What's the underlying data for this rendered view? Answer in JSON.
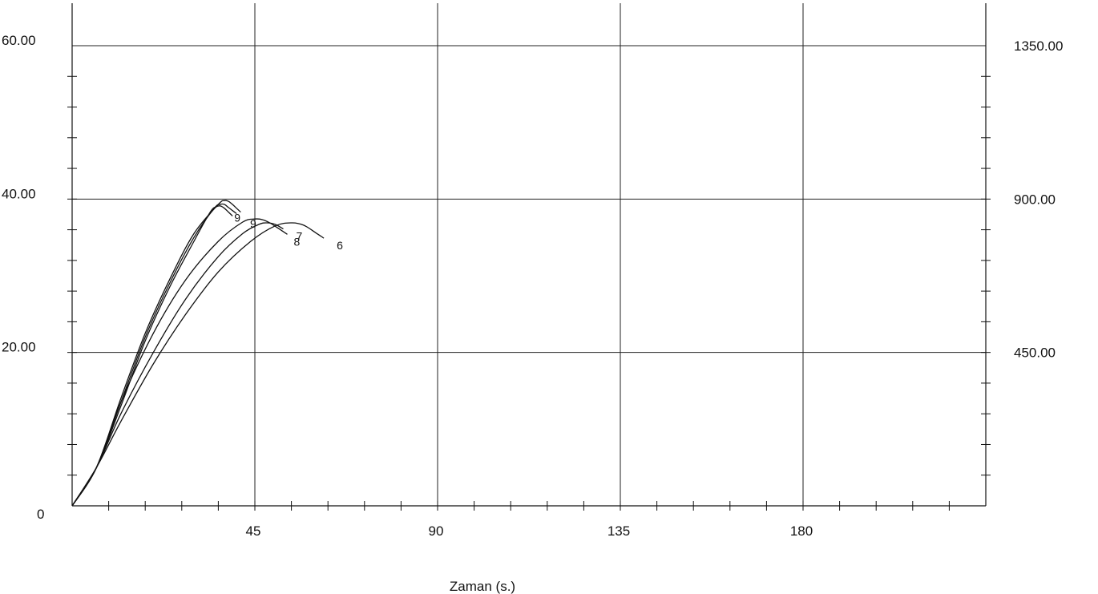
{
  "chart_data": {
    "type": "line",
    "xlabel": "Zaman (s.)",
    "xlim": [
      0,
      225
    ],
    "ylim": [
      0,
      60
    ],
    "y2lim": [
      0,
      1350
    ],
    "x_major_ticks": [
      45,
      90,
      135,
      180
    ],
    "x_tick_labels": [
      "45",
      "90",
      "135",
      "180"
    ],
    "x_minor_step": 9,
    "y_major_ticks": [
      20,
      40,
      60
    ],
    "y_tick_labels": [
      "20.00",
      "40.00",
      "60.00"
    ],
    "y_minor_step": 4,
    "y_origin_label": "0",
    "y2_major_ticks": [
      450,
      900,
      1350
    ],
    "y2_tick_labels": [
      "450.00",
      "900.00",
      "1350.00"
    ],
    "y2_minor_step": 90,
    "grid": true,
    "series": [
      {
        "name": "9",
        "x": [
          0,
          6,
          12,
          18,
          24,
          30,
          36,
          37.5,
          38.5,
          39.5,
          40.5,
          41.5
        ],
        "y": [
          0,
          5,
          14,
          22.5,
          29.5,
          35.5,
          39.3,
          39.8,
          39.7,
          39.3,
          38.8,
          38.3
        ]
      },
      {
        "name": "",
        "x": [
          0,
          6,
          12,
          18,
          24,
          30,
          35,
          36.5,
          37.5,
          38.5,
          39.5,
          40.5
        ],
        "y": [
          0,
          5,
          13.5,
          22,
          29,
          35,
          38.8,
          39.3,
          39.3,
          38.9,
          38.5,
          38.1
        ]
      },
      {
        "name": "",
        "x": [
          0,
          6,
          12,
          18,
          24,
          30,
          34,
          35.5,
          36.5,
          37.5,
          38.5,
          39.5
        ],
        "y": [
          0,
          5,
          13,
          21.5,
          28.5,
          34.5,
          38.3,
          39,
          39.1,
          38.8,
          38.3,
          37.8
        ]
      },
      {
        "name": "8",
        "x": [
          0,
          6,
          12,
          20,
          28,
          36,
          42,
          45,
          47,
          49,
          51,
          53
        ],
        "y": [
          0,
          5,
          13.5,
          22.5,
          29.5,
          34.5,
          37,
          37.4,
          37.3,
          36.8,
          36.1,
          35.4
        ]
      },
      {
        "name": "7",
        "x": [
          0,
          6,
          12,
          20,
          28,
          36,
          42,
          46,
          48,
          50,
          52
        ],
        "y": [
          0,
          5,
          12,
          20,
          27,
          32.5,
          35.5,
          36.7,
          36.9,
          36.7,
          36.1
        ]
      },
      {
        "name": "6",
        "x": [
          0,
          6,
          12,
          20,
          28,
          36,
          44,
          50,
          54,
          57,
          60,
          62
        ],
        "y": [
          0,
          5,
          11,
          18.5,
          25,
          30.5,
          34.5,
          36.5,
          36.9,
          36.6,
          35.6,
          34.9
        ]
      }
    ],
    "series_label_texts": [
      "9",
      "8",
      "7",
      "6"
    ],
    "stray_label_text": "9"
  }
}
